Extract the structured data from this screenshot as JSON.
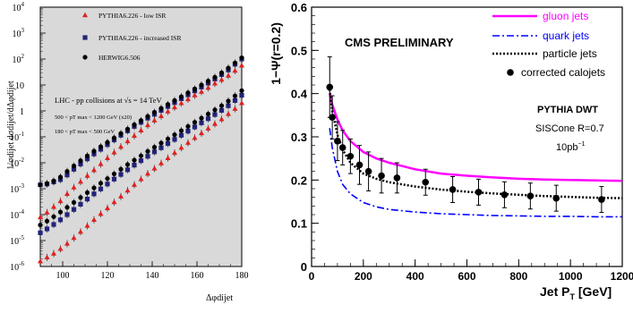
{
  "chart_data": [
    {
      "type": "scatter",
      "title": "",
      "xlabel": "Δφdijet",
      "ylabel": "1/σdijet dσdijet/dΔφdijet",
      "x_ticks": [
        100,
        120,
        140,
        160,
        180
      ],
      "y_ticks": [
        {
          "base": "10",
          "exp": "4"
        },
        {
          "base": "10",
          "exp": "3"
        },
        {
          "base": "10",
          "exp": "2"
        },
        {
          "base": "10",
          "exp": ""
        },
        {
          "base": "1",
          "exp": ""
        },
        {
          "base": "10",
          "exp": "-1"
        },
        {
          "base": "10",
          "exp": "-2"
        },
        {
          "base": "10",
          "exp": "-3"
        },
        {
          "base": "10",
          "exp": "-4"
        },
        {
          "base": "10",
          "exp": "-5"
        },
        {
          "base": "10",
          "exp": "-6"
        }
      ],
      "xlim": [
        90,
        180
      ],
      "ylim_log10": [
        -6,
        4
      ],
      "annotations": {
        "line1": "LHC - pp collisions at √s = 14 TeV",
        "line2": "500 < pT max < 1200 GeV (x20)",
        "line3": "180 < pT max < 500 GeV"
      },
      "series": [
        {
          "name": "PYTHIA6.226 - low ISR",
          "marker": "triangle",
          "color": "#e02020"
        },
        {
          "name": "PYTHIA6.226 - increased ISR",
          "marker": "square",
          "color": "#23237a"
        },
        {
          "name": "HERWIG6.506",
          "marker": "circle",
          "color": "#000000"
        }
      ],
      "x": [
        90,
        93,
        96,
        99,
        102,
        105,
        108,
        111,
        114,
        117,
        120,
        123,
        126,
        129,
        132,
        135,
        138,
        141,
        144,
        147,
        150,
        153,
        156,
        159,
        162,
        165,
        168,
        171,
        174,
        177,
        180
      ],
      "upper_log10": {
        "PYTHIA6.226 - low ISR": [
          -4.1,
          -3.92,
          -3.7,
          -3.48,
          -3.2,
          -2.95,
          -2.73,
          -2.5,
          -2.28,
          -2.05,
          -1.82,
          -1.6,
          -1.38,
          -1.17,
          -0.96,
          -0.75,
          -0.55,
          -0.37,
          -0.2,
          -0.02,
          0.14,
          0.3,
          0.45,
          0.6,
          0.74,
          0.89,
          1.06,
          1.2,
          1.36,
          1.55,
          1.75
        ],
        "PYTHIA6.226 - increased ISR": [
          -2.85,
          -2.82,
          -2.74,
          -2.65,
          -2.47,
          -2.25,
          -2.05,
          -1.85,
          -1.66,
          -1.48,
          -1.3,
          -1.12,
          -0.94,
          -0.77,
          -0.6,
          -0.44,
          -0.28,
          -0.13,
          0.02,
          0.17,
          0.32,
          0.47,
          0.62,
          0.77,
          0.92,
          1.07,
          1.23,
          1.4,
          1.58,
          1.8,
          2.0
        ],
        "HERWIG6.506": [
          -2.85,
          -2.8,
          -2.7,
          -2.55,
          -2.33,
          -2.12,
          -1.92,
          -1.73,
          -1.55,
          -1.38,
          -1.21,
          -1.04,
          -0.87,
          -0.7,
          -0.53,
          -0.37,
          -0.21,
          -0.05,
          0.1,
          0.25,
          0.4,
          0.55,
          0.7,
          0.85,
          1.0,
          1.15,
          1.3,
          1.47,
          1.65,
          1.85,
          2.05
        ]
      },
      "lower_log10": {
        "PYTHIA6.226 - low ISR": [
          -5.8,
          -5.65,
          -5.5,
          -5.32,
          -5.12,
          -4.9,
          -4.66,
          -4.43,
          -4.2,
          -3.97,
          -3.75,
          -3.52,
          -3.3,
          -3.07,
          -2.85,
          -2.63,
          -2.42,
          -2.22,
          -2.02,
          -1.82,
          -1.62,
          -1.42,
          -1.23,
          -1.04,
          -0.86,
          -0.68,
          -0.5,
          -0.32,
          -0.12,
          0.08,
          0.3
        ],
        "PYTHIA6.226 - increased ISR": [
          -4.7,
          -4.55,
          -4.38,
          -4.2,
          -4.0,
          -3.8,
          -3.6,
          -3.4,
          -3.2,
          -3.01,
          -2.82,
          -2.63,
          -2.45,
          -2.27,
          -2.09,
          -1.92,
          -1.75,
          -1.58,
          -1.42,
          -1.26,
          -1.1,
          -0.94,
          -0.78,
          -0.62,
          -0.46,
          -0.3,
          -0.14,
          0.02,
          0.2,
          0.4,
          0.6
        ],
        "HERWIG6.506": [
          -4.4,
          -4.25,
          -4.08,
          -3.9,
          -3.72,
          -3.53,
          -3.34,
          -3.15,
          -2.97,
          -2.79,
          -2.61,
          -2.43,
          -2.25,
          -2.07,
          -1.9,
          -1.73,
          -1.56,
          -1.4,
          -1.24,
          -1.08,
          -0.92,
          -0.76,
          -0.6,
          -0.44,
          -0.28,
          -0.12,
          0.04,
          0.2,
          0.38,
          0.58,
          0.78
        ]
      }
    },
    {
      "type": "line",
      "title": "",
      "xlabel": "Jet P",
      "xlabel_sub": "T",
      "xlabel_unit": " [GeV]",
      "ylabel": "1−Ψ(r=0.2)",
      "xlim": [
        0,
        1200
      ],
      "ylim": [
        0,
        0.6
      ],
      "x_ticks": [
        0,
        200,
        400,
        600,
        800,
        1000,
        1200
      ],
      "y_ticks": [
        0,
        0.1,
        0.2,
        0.3,
        0.4,
        0.5,
        0.6
      ],
      "annotations": {
        "prelim": "CMS PRELIMINARY",
        "gen": "PYTHIA DWT",
        "algo": "SISCone R=0.7",
        "lumi": "10pb",
        "lumi_exp": "−1"
      },
      "x": [
        70,
        80,
        100,
        120,
        150,
        200,
        250,
        300,
        400,
        500,
        600,
        700,
        800,
        900,
        1000,
        1100,
        1200
      ],
      "series": [
        {
          "name": "gluon jets",
          "style": "solid",
          "color": "#ff00ff",
          "values": [
            0.4,
            0.375,
            0.34,
            0.315,
            0.29,
            0.265,
            0.25,
            0.24,
            0.225,
            0.215,
            0.21,
            0.206,
            0.203,
            0.201,
            0.2,
            0.199,
            0.198
          ]
        },
        {
          "name": "quark jets",
          "style": "dashdot",
          "color": "#0000ff",
          "values": [
            0.32,
            0.275,
            0.22,
            0.19,
            0.168,
            0.148,
            0.138,
            0.132,
            0.126,
            0.122,
            0.12,
            0.118,
            0.117,
            0.116,
            0.116,
            0.115,
            0.115
          ]
        },
        {
          "name": "particle jets",
          "style": "dotted",
          "color": "#000000",
          "values": [
            0.41,
            0.36,
            0.305,
            0.27,
            0.24,
            0.215,
            0.203,
            0.195,
            0.185,
            0.178,
            0.173,
            0.169,
            0.166,
            0.163,
            0.161,
            0.159,
            0.158
          ]
        }
      ],
      "points": {
        "name": "corrected calojets",
        "x": [
          70,
          80,
          100,
          120,
          150,
          185,
          220,
          270,
          330,
          440,
          545,
          645,
          745,
          845,
          945,
          1120
        ],
        "y": [
          0.415,
          0.345,
          0.29,
          0.275,
          0.255,
          0.235,
          0.22,
          0.21,
          0.205,
          0.195,
          0.178,
          0.172,
          0.166,
          0.163,
          0.158,
          0.155
        ],
        "err": [
          0.07,
          0.05,
          0.045,
          0.04,
          0.04,
          0.045,
          0.045,
          0.04,
          0.035,
          0.03,
          0.03,
          0.03,
          0.03,
          0.03,
          0.03,
          0.03
        ]
      }
    }
  ]
}
